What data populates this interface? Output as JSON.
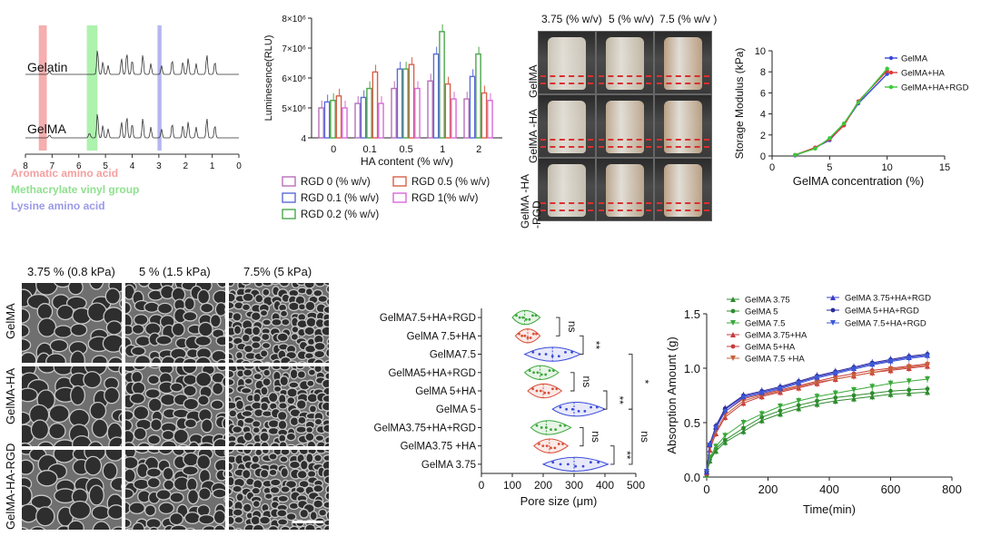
{
  "nmr": {
    "labels": [
      "Gelatin",
      "GelMA"
    ],
    "ticks": [
      "8",
      "7",
      "6",
      "5",
      "4",
      "3",
      "2",
      "1",
      "0"
    ],
    "legend": [
      "Aromatic amino acid",
      "Methacrylate vinyl group",
      "Lysine amino acid"
    ],
    "colors": [
      "#f4a0a0",
      "#9ff09f",
      "#a8a8f0"
    ]
  },
  "chart_data": [
    {
      "type": "bar",
      "ylabel": "Luminesence(RLU)",
      "xlabel": "HA content (% w/v)",
      "categories": [
        "0",
        "0.1",
        "0.5",
        "1",
        "2"
      ],
      "ytick_labels": [
        "4",
        "5×10⁶",
        "6×10⁶",
        "7×10⁶",
        "8×10⁶"
      ],
      "ylim": [
        4000000,
        8000000
      ],
      "series": [
        {
          "name": "RGD 0 (% w/v)",
          "color": "#b86fb8",
          "values": [
            5000000,
            5150000,
            5650000,
            5900000,
            5300000
          ]
        },
        {
          "name": "RGD 0.1 (% w/v)",
          "color": "#5a6ad8",
          "values": [
            5200000,
            5350000,
            6300000,
            6800000,
            6050000
          ]
        },
        {
          "name": "RGD 0.2 (% w/v)",
          "color": "#4aa84a",
          "values": [
            5250000,
            5650000,
            6300000,
            7550000,
            6800000
          ]
        },
        {
          "name": "RGD 0.5 (% w/v)",
          "color": "#d8604a",
          "values": [
            5400000,
            6200000,
            6450000,
            5800000,
            5500000
          ]
        },
        {
          "name": "RGD 1(% w/v)",
          "color": "#d86ad8",
          "values": [
            5000000,
            5150000,
            5650000,
            5300000,
            5250000
          ]
        }
      ]
    },
    {
      "type": "line",
      "xlabel": "GelMA concentration (%)",
      "ylabel": "Storage Modulus (kPa)",
      "xlim": [
        0,
        15
      ],
      "ylim": [
        0,
        10
      ],
      "xticks": [
        "0",
        "5",
        "10",
        "15"
      ],
      "yticks": [
        "0",
        "2",
        "4",
        "6",
        "8",
        "10"
      ],
      "x": [
        2,
        3.75,
        5,
        6.25,
        7.5,
        10
      ],
      "series": [
        {
          "name": "GelMA",
          "color": "#3a4ad8",
          "values": [
            0.05,
            0.8,
            1.5,
            3.0,
            5.0,
            7.8
          ]
        },
        {
          "name": "GelMA+HA",
          "color": "#d83a3a",
          "values": [
            0.1,
            0.8,
            1.6,
            2.9,
            5.2,
            8.1
          ]
        },
        {
          "name": "GelMA+HA+RGD",
          "color": "#3ac83a",
          "values": [
            0.1,
            0.7,
            1.7,
            3.1,
            5.1,
            8.3
          ]
        }
      ]
    },
    {
      "type": "scatter",
      "xlabel": "Pore size (μm)",
      "xlim": [
        0,
        500
      ],
      "xticks": [
        "0",
        "100",
        "200",
        "300",
        "400",
        "500"
      ],
      "categories": [
        "GelMA7.5+HA+RGD",
        "GelMA 7.5+HA",
        "GelMA7.5",
        "GelMA5+HA+RGD",
        "GelMA 5+HA",
        "GelMA 5",
        "GelMA3.75+HA+RGD",
        "GelMA3.75 +HA",
        "GelMA 3.75"
      ],
      "colors": [
        "#3aa83a",
        "#d8503a",
        "#3a4ad8",
        "#3aa83a",
        "#d8503a",
        "#3a4ad8",
        "#3aa83a",
        "#d8503a",
        "#3a4ad8"
      ],
      "ranges": [
        [
          100,
          190
        ],
        [
          110,
          190
        ],
        [
          140,
          320
        ],
        [
          140,
          250
        ],
        [
          150,
          260
        ],
        [
          230,
          400
        ],
        [
          160,
          290
        ],
        [
          170,
          280
        ],
        [
          200,
          410
        ]
      ],
      "medians": [
        140,
        150,
        230,
        190,
        200,
        300,
        210,
        220,
        300
      ],
      "annotations": [
        "ns",
        "**",
        "ns",
        "**",
        "ns",
        "**",
        "*",
        "ns"
      ]
    },
    {
      "type": "line",
      "xlabel": "Time(min)",
      "ylabel": "Absorption Amount (g)",
      "xlim": [
        0,
        800
      ],
      "ylim": [
        0,
        1.5
      ],
      "xticks": [
        "0",
        "200",
        "400",
        "600",
        "800"
      ],
      "yticks": [
        "0.0",
        "0.5",
        "1.0",
        "1.5"
      ],
      "x": [
        0,
        10,
        30,
        60,
        120,
        180,
        240,
        300,
        360,
        420,
        480,
        540,
        600,
        660,
        720
      ],
      "series": [
        {
          "name": "GelMA 3.75",
          "color": "#2e8b2e",
          "values": [
            0.02,
            0.15,
            0.24,
            0.32,
            0.42,
            0.52,
            0.58,
            0.63,
            0.67,
            0.7,
            0.72,
            0.74,
            0.76,
            0.77,
            0.78
          ]
        },
        {
          "name": "GelMA 5",
          "color": "#2e8b2e",
          "values": [
            0.03,
            0.16,
            0.26,
            0.34,
            0.45,
            0.55,
            0.61,
            0.66,
            0.7,
            0.73,
            0.75,
            0.77,
            0.79,
            0.8,
            0.81
          ]
        },
        {
          "name": "GelMA 7.5",
          "color": "#3aa83a",
          "values": [
            0.03,
            0.18,
            0.28,
            0.38,
            0.5,
            0.58,
            0.65,
            0.7,
            0.74,
            0.77,
            0.8,
            0.83,
            0.86,
            0.88,
            0.9
          ]
        },
        {
          "name": "GelMA 3.75+HA",
          "color": "#c83a3a",
          "values": [
            0.04,
            0.25,
            0.4,
            0.55,
            0.68,
            0.74,
            0.78,
            0.82,
            0.86,
            0.9,
            0.93,
            0.96,
            0.98,
            1.0,
            1.02
          ]
        },
        {
          "name": "GelMA 5+HA",
          "color": "#c83a3a",
          "values": [
            0.05,
            0.28,
            0.45,
            0.6,
            0.72,
            0.76,
            0.8,
            0.84,
            0.88,
            0.92,
            0.95,
            0.98,
            1.0,
            1.02,
            1.04
          ]
        },
        {
          "name": "GelMA 7.5 +HA",
          "color": "#c8603a",
          "values": [
            0.05,
            0.27,
            0.42,
            0.57,
            0.7,
            0.75,
            0.79,
            0.83,
            0.87,
            0.9,
            0.93,
            0.96,
            0.99,
            1.01,
            1.03
          ]
        },
        {
          "name": "GelMA 3.75+HA+RGD",
          "color": "#3a3ac8",
          "values": [
            0.05,
            0.3,
            0.46,
            0.62,
            0.74,
            0.78,
            0.82,
            0.87,
            0.92,
            0.96,
            1.0,
            1.04,
            1.07,
            1.1,
            1.12
          ]
        },
        {
          "name": "GelMA 5+HA+RGD",
          "color": "#2a2a9a",
          "values": [
            0.05,
            0.3,
            0.47,
            0.63,
            0.75,
            0.79,
            0.83,
            0.88,
            0.93,
            0.97,
            1.01,
            1.05,
            1.08,
            1.11,
            1.13
          ]
        },
        {
          "name": "GelMA 7.5+HA+RGD",
          "color": "#3a5ad8",
          "values": [
            0.05,
            0.29,
            0.45,
            0.6,
            0.73,
            0.77,
            0.81,
            0.86,
            0.91,
            0.95,
            0.99,
            1.03,
            1.06,
            1.09,
            1.11
          ]
        }
      ]
    }
  ],
  "vials": {
    "cols": [
      "3.75 (% w/v)",
      "5 (% w/v)",
      "7.5 (% w/v )"
    ],
    "rows": [
      "GelMA",
      "GelMA -HA",
      "GelMA -HA\n-RGD"
    ]
  },
  "sem": {
    "cols": [
      "3.75 % (0.8 kPa)",
      "5 % (1.5 kPa)",
      "7.5% (5 kPa)"
    ],
    "rows": [
      "GelMA",
      "GelMA-HA",
      "GelMA-HA-RGD"
    ]
  }
}
